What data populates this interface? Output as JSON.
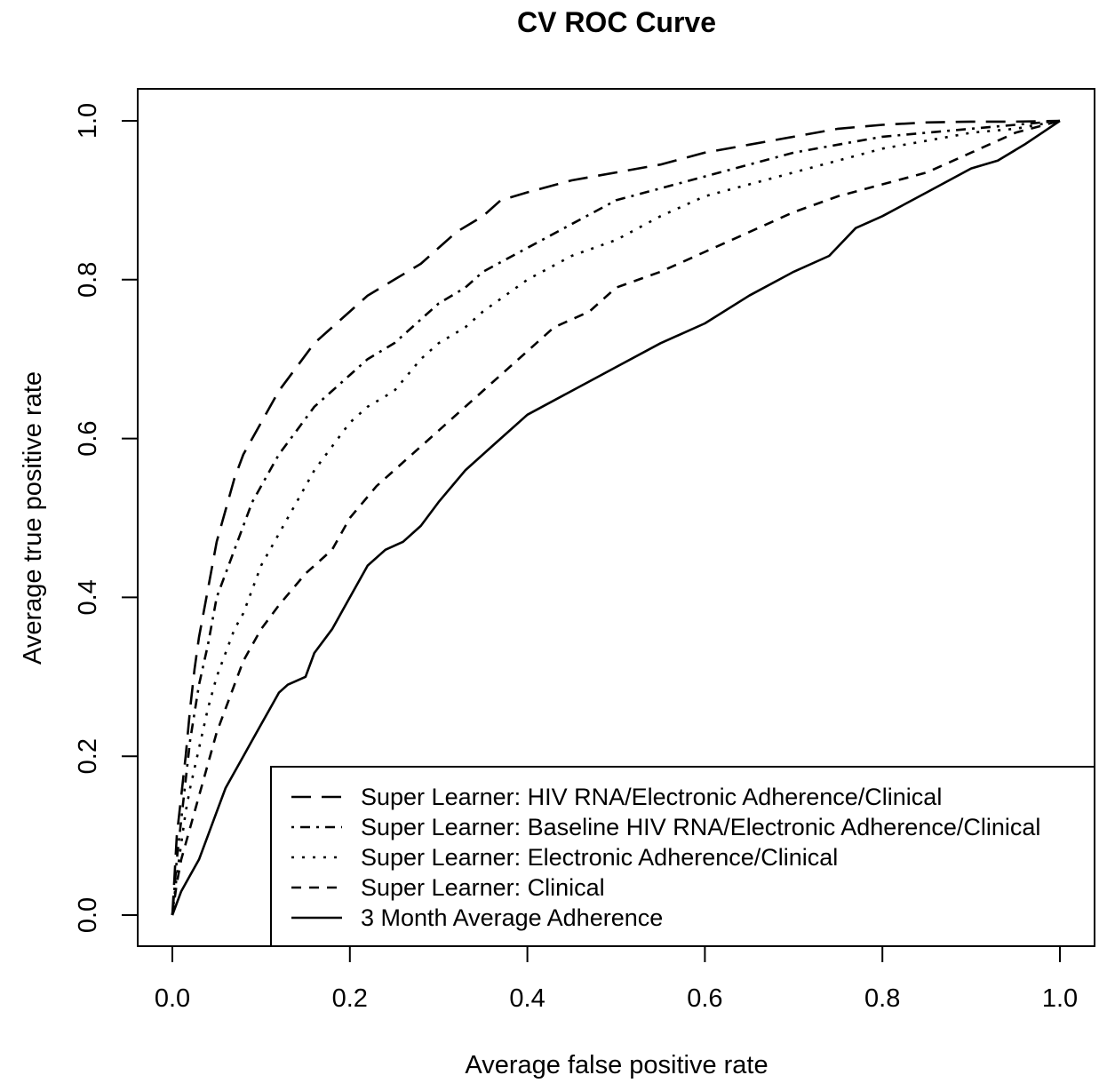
{
  "chart_data": {
    "type": "line",
    "title": "CV ROC Curve",
    "xlabel": "Average false positive rate",
    "ylabel": "Average true positive rate",
    "xlim": [
      0.0,
      1.0
    ],
    "ylim": [
      0.0,
      1.0
    ],
    "xticks": [
      "0.0",
      "0.2",
      "0.4",
      "0.6",
      "0.8",
      "1.0"
    ],
    "yticks": [
      "0.0",
      "0.2",
      "0.4",
      "0.6",
      "0.8",
      "1.0"
    ],
    "grid": false,
    "legend_position": "bottom-right",
    "series": [
      {
        "name": "Super Learner: HIV RNA/Electronic Adherence/Clinical",
        "dash": "long-dash",
        "x": [
          0,
          0.005,
          0.01,
          0.015,
          0.02,
          0.025,
          0.03,
          0.04,
          0.05,
          0.06,
          0.07,
          0.08,
          0.09,
          0.1,
          0.12,
          0.14,
          0.16,
          0.18,
          0.2,
          0.22,
          0.25,
          0.28,
          0.3,
          0.32,
          0.35,
          0.37,
          0.4,
          0.45,
          0.5,
          0.55,
          0.6,
          0.65,
          0.7,
          0.75,
          0.8,
          0.85,
          0.9,
          0.95,
          1.0
        ],
        "y": [
          0,
          0.1,
          0.15,
          0.2,
          0.26,
          0.31,
          0.35,
          0.41,
          0.47,
          0.51,
          0.55,
          0.58,
          0.6,
          0.62,
          0.66,
          0.69,
          0.72,
          0.74,
          0.76,
          0.78,
          0.8,
          0.82,
          0.84,
          0.86,
          0.88,
          0.9,
          0.91,
          0.925,
          0.935,
          0.945,
          0.96,
          0.97,
          0.98,
          0.99,
          0.995,
          0.998,
          0.999,
          0.999,
          1.0
        ]
      },
      {
        "name": "Super Learner: Baseline HIV RNA/Electronic Adherence/Clinical",
        "dash": "dot-dash",
        "x": [
          0,
          0.005,
          0.01,
          0.015,
          0.02,
          0.03,
          0.04,
          0.05,
          0.06,
          0.07,
          0.08,
          0.09,
          0.1,
          0.12,
          0.14,
          0.16,
          0.18,
          0.2,
          0.22,
          0.25,
          0.28,
          0.3,
          0.33,
          0.35,
          0.4,
          0.45,
          0.5,
          0.55,
          0.6,
          0.65,
          0.7,
          0.75,
          0.8,
          0.85,
          0.9,
          0.95,
          1.0
        ],
        "y": [
          0,
          0.07,
          0.12,
          0.17,
          0.22,
          0.29,
          0.34,
          0.4,
          0.43,
          0.46,
          0.49,
          0.52,
          0.54,
          0.58,
          0.61,
          0.64,
          0.66,
          0.68,
          0.7,
          0.72,
          0.75,
          0.77,
          0.79,
          0.81,
          0.84,
          0.87,
          0.9,
          0.915,
          0.93,
          0.945,
          0.96,
          0.97,
          0.98,
          0.985,
          0.99,
          0.995,
          1.0
        ]
      },
      {
        "name": "Super Learner: Electronic Adherence/Clinical",
        "dash": "dotted",
        "x": [
          0,
          0.005,
          0.01,
          0.015,
          0.02,
          0.03,
          0.04,
          0.05,
          0.06,
          0.07,
          0.08,
          0.09,
          0.1,
          0.12,
          0.14,
          0.16,
          0.18,
          0.2,
          0.22,
          0.25,
          0.28,
          0.3,
          0.33,
          0.35,
          0.4,
          0.45,
          0.5,
          0.55,
          0.6,
          0.65,
          0.7,
          0.75,
          0.8,
          0.85,
          0.9,
          0.95,
          1.0
        ],
        "y": [
          0,
          0.05,
          0.09,
          0.13,
          0.16,
          0.21,
          0.26,
          0.3,
          0.33,
          0.36,
          0.38,
          0.41,
          0.44,
          0.48,
          0.52,
          0.56,
          0.59,
          0.62,
          0.64,
          0.66,
          0.7,
          0.72,
          0.74,
          0.76,
          0.8,
          0.83,
          0.85,
          0.88,
          0.905,
          0.92,
          0.935,
          0.95,
          0.965,
          0.975,
          0.985,
          0.99,
          1.0
        ]
      },
      {
        "name": "Super Learner: Clinical",
        "dash": "short-dash",
        "x": [
          0,
          0.005,
          0.01,
          0.02,
          0.03,
          0.04,
          0.05,
          0.06,
          0.07,
          0.08,
          0.1,
          0.12,
          0.15,
          0.18,
          0.2,
          0.23,
          0.26,
          0.3,
          0.33,
          0.37,
          0.4,
          0.43,
          0.47,
          0.5,
          0.55,
          0.6,
          0.65,
          0.7,
          0.75,
          0.8,
          0.85,
          0.9,
          0.95,
          1.0
        ],
        "y": [
          0,
          0.04,
          0.07,
          0.11,
          0.15,
          0.19,
          0.23,
          0.26,
          0.29,
          0.32,
          0.36,
          0.39,
          0.43,
          0.46,
          0.5,
          0.54,
          0.57,
          0.61,
          0.64,
          0.68,
          0.71,
          0.74,
          0.76,
          0.79,
          0.81,
          0.835,
          0.86,
          0.885,
          0.905,
          0.92,
          0.935,
          0.96,
          0.985,
          1.0
        ]
      },
      {
        "name": "3 Month Average Adherence",
        "dash": "solid",
        "x": [
          0,
          0.01,
          0.02,
          0.03,
          0.04,
          0.05,
          0.06,
          0.07,
          0.08,
          0.09,
          0.1,
          0.11,
          0.12,
          0.13,
          0.15,
          0.16,
          0.18,
          0.2,
          0.22,
          0.24,
          0.26,
          0.28,
          0.3,
          0.33,
          0.36,
          0.4,
          0.45,
          0.5,
          0.55,
          0.6,
          0.65,
          0.7,
          0.74,
          0.77,
          0.8,
          0.85,
          0.9,
          0.93,
          0.96,
          0.98,
          1.0
        ],
        "y": [
          0,
          0.03,
          0.05,
          0.07,
          0.1,
          0.13,
          0.16,
          0.18,
          0.2,
          0.22,
          0.24,
          0.26,
          0.28,
          0.29,
          0.3,
          0.33,
          0.36,
          0.4,
          0.44,
          0.46,
          0.47,
          0.49,
          0.52,
          0.56,
          0.59,
          0.63,
          0.66,
          0.69,
          0.72,
          0.745,
          0.78,
          0.81,
          0.83,
          0.865,
          0.88,
          0.91,
          0.94,
          0.95,
          0.97,
          0.985,
          1.0
        ]
      }
    ]
  }
}
